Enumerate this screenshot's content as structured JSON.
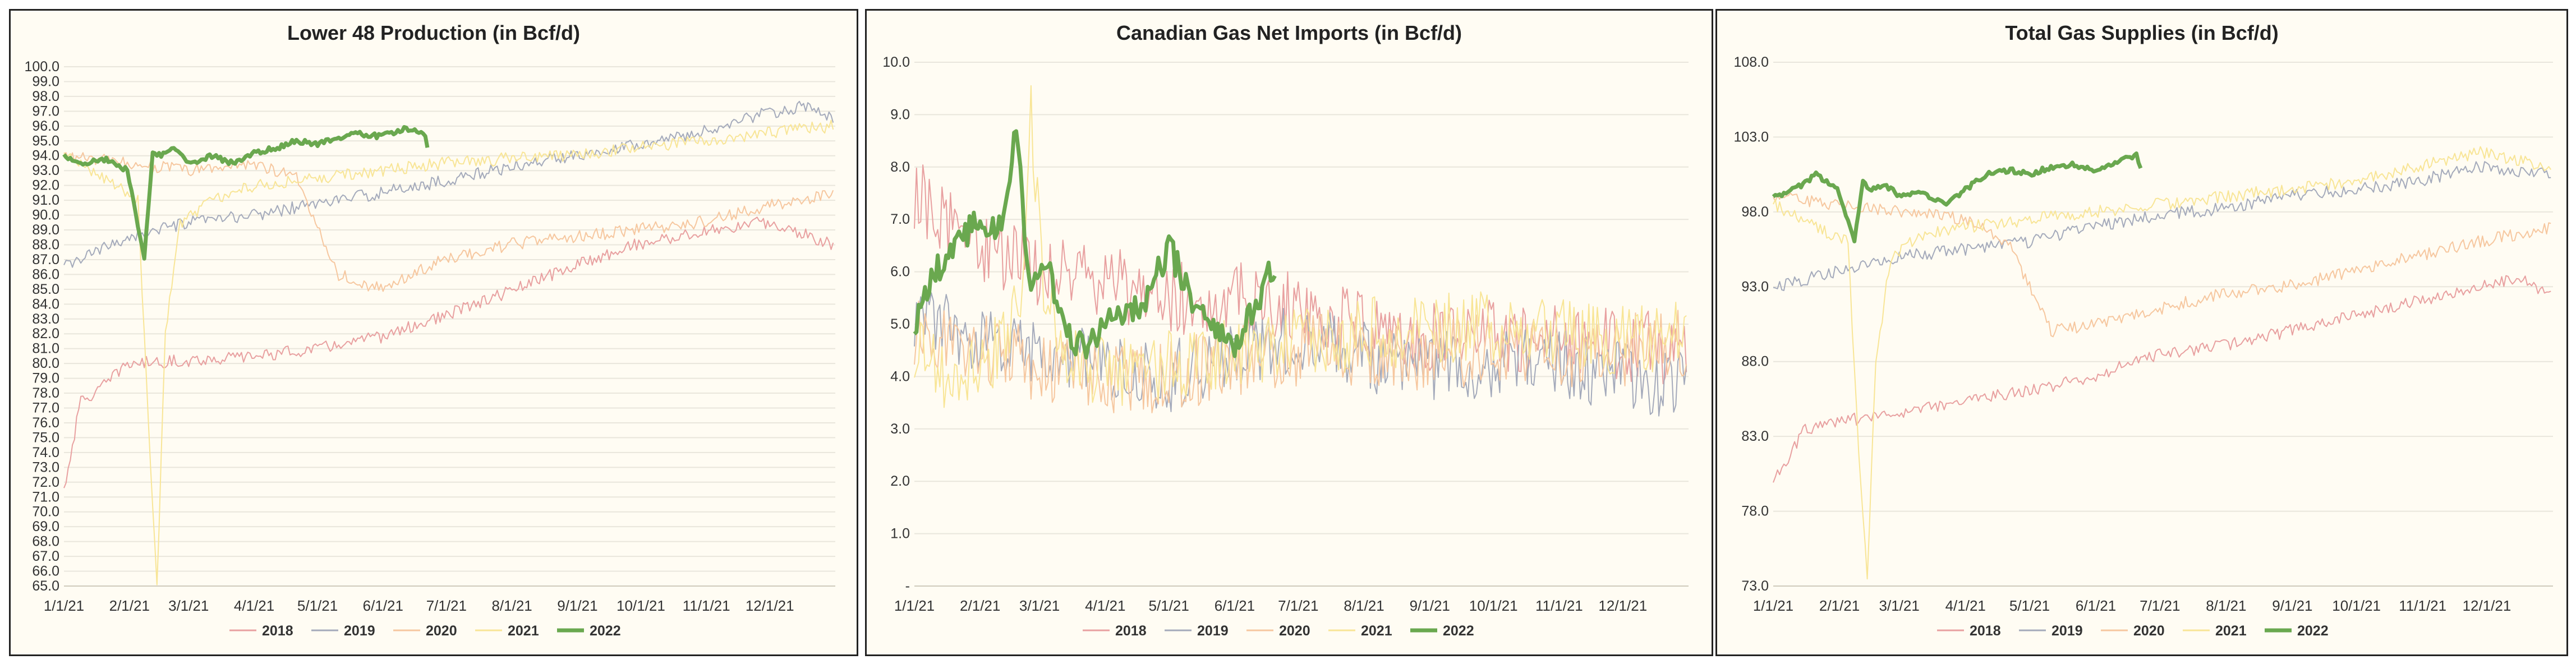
{
  "colors": {
    "s2018": "#e8a0a0",
    "s2019": "#a4aabb",
    "s2020": "#f6c79f",
    "s2021": "#f8e596",
    "s2022": "#6aa84f",
    "grid": "#e9e6dc",
    "background": "#fffcf3"
  },
  "chart_data": [
    {
      "type": "line",
      "title": "Lower 48 Production (in Bcf/d)",
      "xlabel": "",
      "ylabel": "",
      "ylim": [
        65,
        100
      ],
      "y_ticks": [
        "65.0",
        "66.0",
        "67.0",
        "68.0",
        "69.0",
        "70.0",
        "71.0",
        "72.0",
        "73.0",
        "74.0",
        "75.0",
        "76.0",
        "77.0",
        "78.0",
        "79.0",
        "80.0",
        "81.0",
        "82.0",
        "83.0",
        "84.0",
        "85.0",
        "86.0",
        "87.0",
        "88.0",
        "89.0",
        "90.0",
        "91.0",
        "92.0",
        "93.0",
        "94.0",
        "95.0",
        "96.0",
        "97.0",
        "98.0",
        "99.0",
        "100.0"
      ],
      "x_ticks": [
        "1/1/21",
        "2/1/21",
        "3/1/21",
        "4/1/21",
        "5/1/21",
        "6/1/21",
        "7/1/21",
        "8/1/21",
        "9/1/21",
        "10/1/21",
        "11/1/21",
        "12/1/21"
      ],
      "series": [
        {
          "name": "2018",
          "days": [
            0,
            8,
            15,
            30,
            60,
            90,
            120,
            150,
            180,
            210,
            240,
            270,
            300,
            330,
            345,
            364
          ],
          "values": [
            71.5,
            77.5,
            78.0,
            80.0,
            80.2,
            80.5,
            81.0,
            81.8,
            83.2,
            84.8,
            86.5,
            88.0,
            88.8,
            89.5,
            89.0,
            88.0
          ]
        },
        {
          "name": "2019",
          "days": [
            0,
            30,
            60,
            90,
            120,
            150,
            180,
            210,
            240,
            270,
            300,
            330,
            350,
            364
          ],
          "values": [
            86.5,
            88.5,
            89.5,
            90.0,
            90.8,
            91.5,
            92.3,
            93.2,
            94.0,
            94.8,
            95.5,
            96.8,
            97.3,
            96.5
          ]
        },
        {
          "name": "2020",
          "days": [
            0,
            30,
            60,
            90,
            110,
            130,
            150,
            180,
            210,
            240,
            270,
            300,
            330,
            364
          ],
          "values": [
            94.0,
            93.5,
            93.0,
            93.5,
            92.5,
            86.0,
            85.0,
            87.0,
            88.0,
            88.5,
            89.0,
            89.5,
            90.5,
            91.5
          ]
        },
        {
          "name": "2021",
          "days": [
            0,
            20,
            35,
            40,
            44,
            48,
            55,
            70,
            90,
            120,
            150,
            180,
            210,
            240,
            270,
            300,
            330,
            364
          ],
          "values": [
            94.0,
            92.5,
            91.0,
            76.0,
            65.0,
            82.0,
            89.5,
            91.0,
            92.0,
            92.5,
            93.0,
            93.5,
            93.8,
            94.0,
            94.5,
            95.0,
            95.5,
            96.0
          ]
        },
        {
          "name": "2022",
          "days": [
            0,
            10,
            20,
            30,
            38,
            42,
            46,
            52,
            60,
            70,
            80,
            90,
            100,
            110,
            120,
            130,
            140,
            150,
            160,
            170,
            172
          ],
          "values": [
            94.0,
            93.5,
            93.8,
            93.0,
            87.0,
            94.2,
            94.0,
            94.5,
            93.5,
            94.0,
            93.5,
            94.2,
            94.5,
            95.0,
            94.8,
            95.2,
            95.5,
            95.3,
            95.8,
            95.6,
            94.7
          ]
        }
      ]
    },
    {
      "type": "line",
      "title": "Canadian Gas Net Imports (in Bcf/d)",
      "xlabel": "",
      "ylabel": "",
      "ylim": [
        0,
        10
      ],
      "y_ticks": [
        "-",
        "1.0",
        "2.0",
        "3.0",
        "4.0",
        "5.0",
        "6.0",
        "7.0",
        "8.0",
        "9.0",
        "10.0"
      ],
      "x_ticks": [
        "1/1/21",
        "2/1/21",
        "3/1/21",
        "4/1/21",
        "5/1/21",
        "6/1/21",
        "7/1/21",
        "8/1/21",
        "9/1/21",
        "10/1/21",
        "11/1/21",
        "12/1/21"
      ],
      "series": [
        {
          "name": "2018",
          "days": [
            0,
            30,
            60,
            90,
            120,
            150,
            180,
            210,
            240,
            270,
            300,
            330,
            364
          ],
          "values": [
            7.5,
            6.5,
            6.0,
            5.8,
            5.5,
            5.5,
            5.3,
            5.0,
            4.8,
            4.8,
            4.7,
            4.6,
            4.5
          ]
        },
        {
          "name": "2019",
          "days": [
            0,
            30,
            60,
            90,
            120,
            150,
            180,
            210,
            240,
            270,
            300,
            330,
            364
          ],
          "values": [
            5.2,
            4.6,
            4.4,
            4.2,
            4.0,
            4.5,
            4.7,
            4.4,
            4.2,
            4.2,
            4.3,
            4.0,
            3.9
          ]
        },
        {
          "name": "2020",
          "days": [
            0,
            30,
            60,
            90,
            120,
            150,
            180,
            210,
            240,
            270,
            300,
            330,
            364
          ],
          "values": [
            4.8,
            4.5,
            4.2,
            4.0,
            4.0,
            4.3,
            4.5,
            4.5,
            4.4,
            4.5,
            4.5,
            4.5,
            4.6
          ]
        },
        {
          "name": "2021",
          "days": [
            0,
            20,
            40,
            50,
            55,
            60,
            70,
            90,
            120,
            150,
            180,
            210,
            240,
            270,
            300,
            330,
            364
          ],
          "values": [
            4.5,
            3.8,
            4.5,
            5.5,
            9.0,
            6.0,
            4.5,
            4.0,
            4.2,
            4.5,
            4.6,
            4.8,
            4.9,
            5.0,
            4.8,
            4.7,
            4.8
          ]
        },
        {
          "name": "2022",
          "days": [
            0,
            10,
            20,
            30,
            40,
            48,
            55,
            62,
            70,
            80,
            90,
            100,
            110,
            120,
            130,
            140,
            150,
            160,
            170
          ],
          "values": [
            5.0,
            6.0,
            6.5,
            7.0,
            6.8,
            8.7,
            5.5,
            6.3,
            5.0,
            4.5,
            5.0,
            5.2,
            5.5,
            6.5,
            5.5,
            5.0,
            4.6,
            5.3,
            6.2
          ]
        }
      ]
    },
    {
      "type": "line",
      "title": "Total Gas Supplies (in Bcf/d)",
      "xlabel": "",
      "ylabel": "",
      "ylim": [
        73,
        108
      ],
      "y_ticks": [
        "73.0",
        "78.0",
        "83.0",
        "88.0",
        "93.0",
        "98.0",
        "103.0",
        "108.0"
      ],
      "x_ticks": [
        "1/1/21",
        "2/1/21",
        "3/1/21",
        "4/1/21",
        "5/1/21",
        "6/1/21",
        "7/1/21",
        "8/1/21",
        "9/1/21",
        "10/1/21",
        "11/1/21",
        "12/1/21"
      ],
      "series": [
        {
          "name": "2018",
          "days": [
            0,
            15,
            30,
            60,
            90,
            120,
            150,
            180,
            210,
            240,
            270,
            300,
            330,
            350,
            364
          ],
          "values": [
            80.0,
            83.5,
            84.0,
            84.5,
            85.5,
            86.0,
            87.0,
            88.5,
            89.0,
            90.0,
            91.0,
            92.0,
            93.0,
            93.5,
            92.5
          ]
        },
        {
          "name": "2019",
          "days": [
            0,
            30,
            60,
            90,
            120,
            150,
            180,
            210,
            240,
            270,
            300,
            330,
            364
          ],
          "values": [
            93.0,
            94.0,
            95.0,
            95.5,
            96.0,
            97.0,
            97.8,
            98.2,
            99.0,
            99.5,
            100.0,
            101.0,
            100.5
          ]
        },
        {
          "name": "2020",
          "days": [
            0,
            30,
            60,
            90,
            110,
            130,
            150,
            180,
            210,
            240,
            270,
            300,
            330,
            364
          ],
          "values": [
            99.0,
            98.5,
            98.0,
            97.5,
            96.0,
            90.0,
            90.5,
            91.5,
            92.5,
            93.0,
            94.0,
            95.0,
            96.0,
            97.0
          ]
        },
        {
          "name": "2021",
          "days": [
            0,
            20,
            35,
            40,
            44,
            48,
            55,
            70,
            90,
            120,
            150,
            180,
            210,
            240,
            270,
            300,
            330,
            364
          ],
          "values": [
            98.5,
            97.0,
            96.0,
            82.0,
            73.5,
            88.0,
            95.0,
            96.5,
            97.0,
            97.5,
            98.0,
            98.5,
            99.0,
            99.5,
            100.0,
            101.0,
            102.0,
            101.0
          ]
        },
        {
          "name": "2022",
          "days": [
            0,
            10,
            20,
            30,
            38,
            42,
            46,
            52,
            60,
            70,
            80,
            90,
            100,
            110,
            120,
            130,
            140,
            150,
            160,
            170,
            172
          ],
          "values": [
            99.0,
            99.5,
            100.5,
            99.5,
            96.0,
            100.0,
            99.5,
            99.8,
            99.0,
            99.3,
            98.5,
            99.5,
            100.5,
            100.8,
            100.5,
            101.0,
            101.2,
            100.8,
            101.3,
            101.8,
            101.0
          ]
        }
      ]
    }
  ]
}
